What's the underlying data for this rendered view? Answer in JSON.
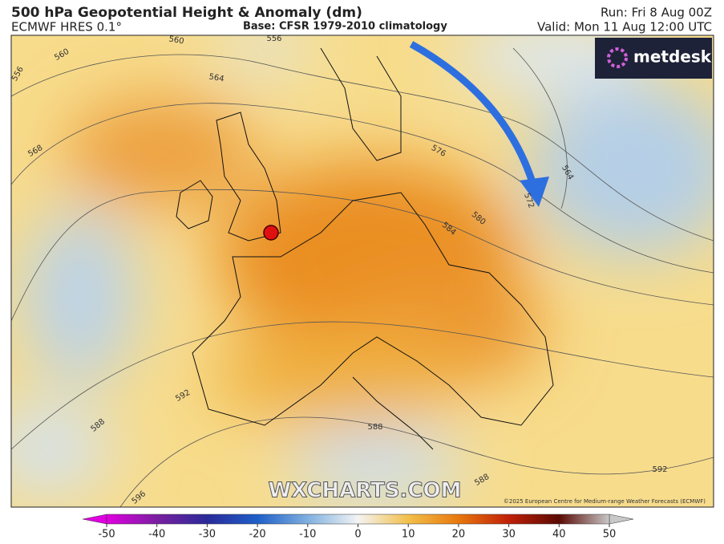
{
  "header": {
    "title": "500 hPa Geopotential Height & Anomaly (dm)",
    "subtitle": "ECMWF HRES 0.1°",
    "base": "Base: CFSR 1979-2010 climatology",
    "run": "Run: Fri 8 Aug 00Z",
    "valid": "Valid: Mon 11 Aug 12:00 UTC"
  },
  "logo": "metdesk",
  "watermark": "WXCHARTS.COM",
  "copyright": "©2025 European Centre for Medium-range Weather Forecasts (ECMWF)",
  "contour_labels": [
    560,
    556,
    560,
    556,
    564,
    568,
    576,
    572,
    580,
    584,
    564,
    588,
    592,
    596,
    588,
    588,
    592
  ],
  "colorbar": {
    "range": [
      -50,
      50
    ],
    "ticks": [
      -50,
      -40,
      -30,
      -20,
      -10,
      0,
      10,
      20,
      30,
      40,
      50
    ],
    "colors": [
      "#e000e0",
      "#7a1fa0",
      "#2a2a9a",
      "#1f5fc8",
      "#7fb0e0",
      "#f4f4f4",
      "#f2c04a",
      "#e8780e",
      "#c02008",
      "#5a0a04",
      "#c8c8c8"
    ]
  }
}
